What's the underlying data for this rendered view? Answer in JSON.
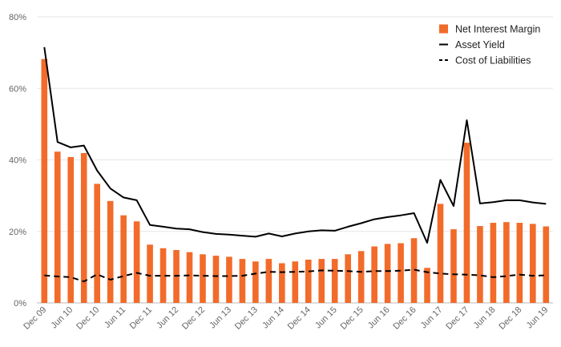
{
  "chart_data": {
    "type": "bar",
    "title": "",
    "xlabel": "",
    "ylabel": "",
    "ylim": [
      0,
      80
    ],
    "y_ticks": [
      "0%",
      "20%",
      "40%",
      "60%",
      "80%"
    ],
    "grid": "horizontal",
    "legend_position": "top-right",
    "categories": [
      "Dec 09",
      "Mar 10",
      "Jun 10",
      "Sep 10",
      "Dec 10",
      "Mar 11",
      "Jun 11",
      "Sep 11",
      "Dec 11",
      "Mar 12",
      "Jun 12",
      "Sep 12",
      "Dec 12",
      "Mar 13",
      "Jun 13",
      "Sep 13",
      "Dec 13",
      "Mar 14",
      "Jun 14",
      "Sep 14",
      "Dec 14",
      "Mar 15",
      "Jun 15",
      "Sep 15",
      "Dec 15",
      "Mar 16",
      "Jun 16",
      "Sep 16",
      "Dec 16",
      "Mar 17",
      "Jun 17",
      "Sep 17",
      "Dec 17",
      "Mar 18",
      "Jun 18",
      "Sep 18",
      "Dec 18",
      "Mar 19",
      "Jun 19"
    ],
    "x_tick_labels": [
      "Dec 09",
      "Jun 10",
      "Dec 10",
      "Jun 11",
      "Dec 11",
      "Jun 12",
      "Dec 12",
      "Jun 13",
      "Dec 13",
      "Jun 14",
      "Dec 14",
      "Jun 15",
      "Dec 15",
      "Jun 16",
      "Dec 16",
      "Jun 17",
      "Dec 17",
      "Jun 18",
      "Dec 18",
      "Jun 19"
    ],
    "series": [
      {
        "name": "Net Interest Margin",
        "kind": "bar",
        "color": "#f26b2a",
        "values": [
          68.2,
          42.3,
          40.8,
          41.9,
          33.3,
          28.5,
          24.5,
          22.8,
          16.3,
          15.3,
          14.8,
          14.2,
          13.6,
          13.2,
          12.9,
          12.3,
          11.6,
          12.3,
          11.1,
          11.6,
          12.1,
          12.3,
          12.3,
          13.6,
          14.5,
          15.8,
          16.5,
          16.7,
          18.1,
          9.8,
          27.7,
          20.6,
          44.8,
          21.5,
          22.4,
          22.6,
          22.4,
          22.1,
          21.4
        ]
      },
      {
        "name": "Asset Yield",
        "kind": "line",
        "color": "#000000",
        "dash": "solid",
        "values": [
          71.5,
          45.0,
          43.5,
          44.0,
          37.0,
          32.0,
          29.5,
          28.7,
          21.8,
          21.3,
          20.8,
          20.6,
          19.8,
          19.3,
          19.1,
          18.8,
          18.5,
          19.4,
          18.6,
          19.4,
          20.0,
          20.3,
          20.2,
          21.3,
          22.3,
          23.4,
          24.0,
          24.5,
          25.1,
          16.8,
          34.4,
          27.1,
          51.1,
          27.8,
          28.2,
          28.7,
          28.7,
          28.1,
          27.7
        ]
      },
      {
        "name": "Cost of Liabilities",
        "kind": "line",
        "color": "#000000",
        "dash": "dashed",
        "values": [
          7.7,
          7.4,
          7.2,
          6.0,
          8.0,
          6.5,
          7.5,
          8.4,
          7.6,
          7.6,
          7.6,
          7.7,
          7.6,
          7.5,
          7.5,
          7.6,
          8.2,
          8.7,
          8.6,
          8.7,
          8.8,
          9.1,
          9.0,
          8.9,
          8.7,
          8.9,
          8.9,
          9.0,
          9.3,
          8.6,
          8.2,
          8.0,
          7.9,
          7.7,
          7.2,
          7.5,
          7.9,
          7.6,
          7.7
        ]
      }
    ]
  }
}
